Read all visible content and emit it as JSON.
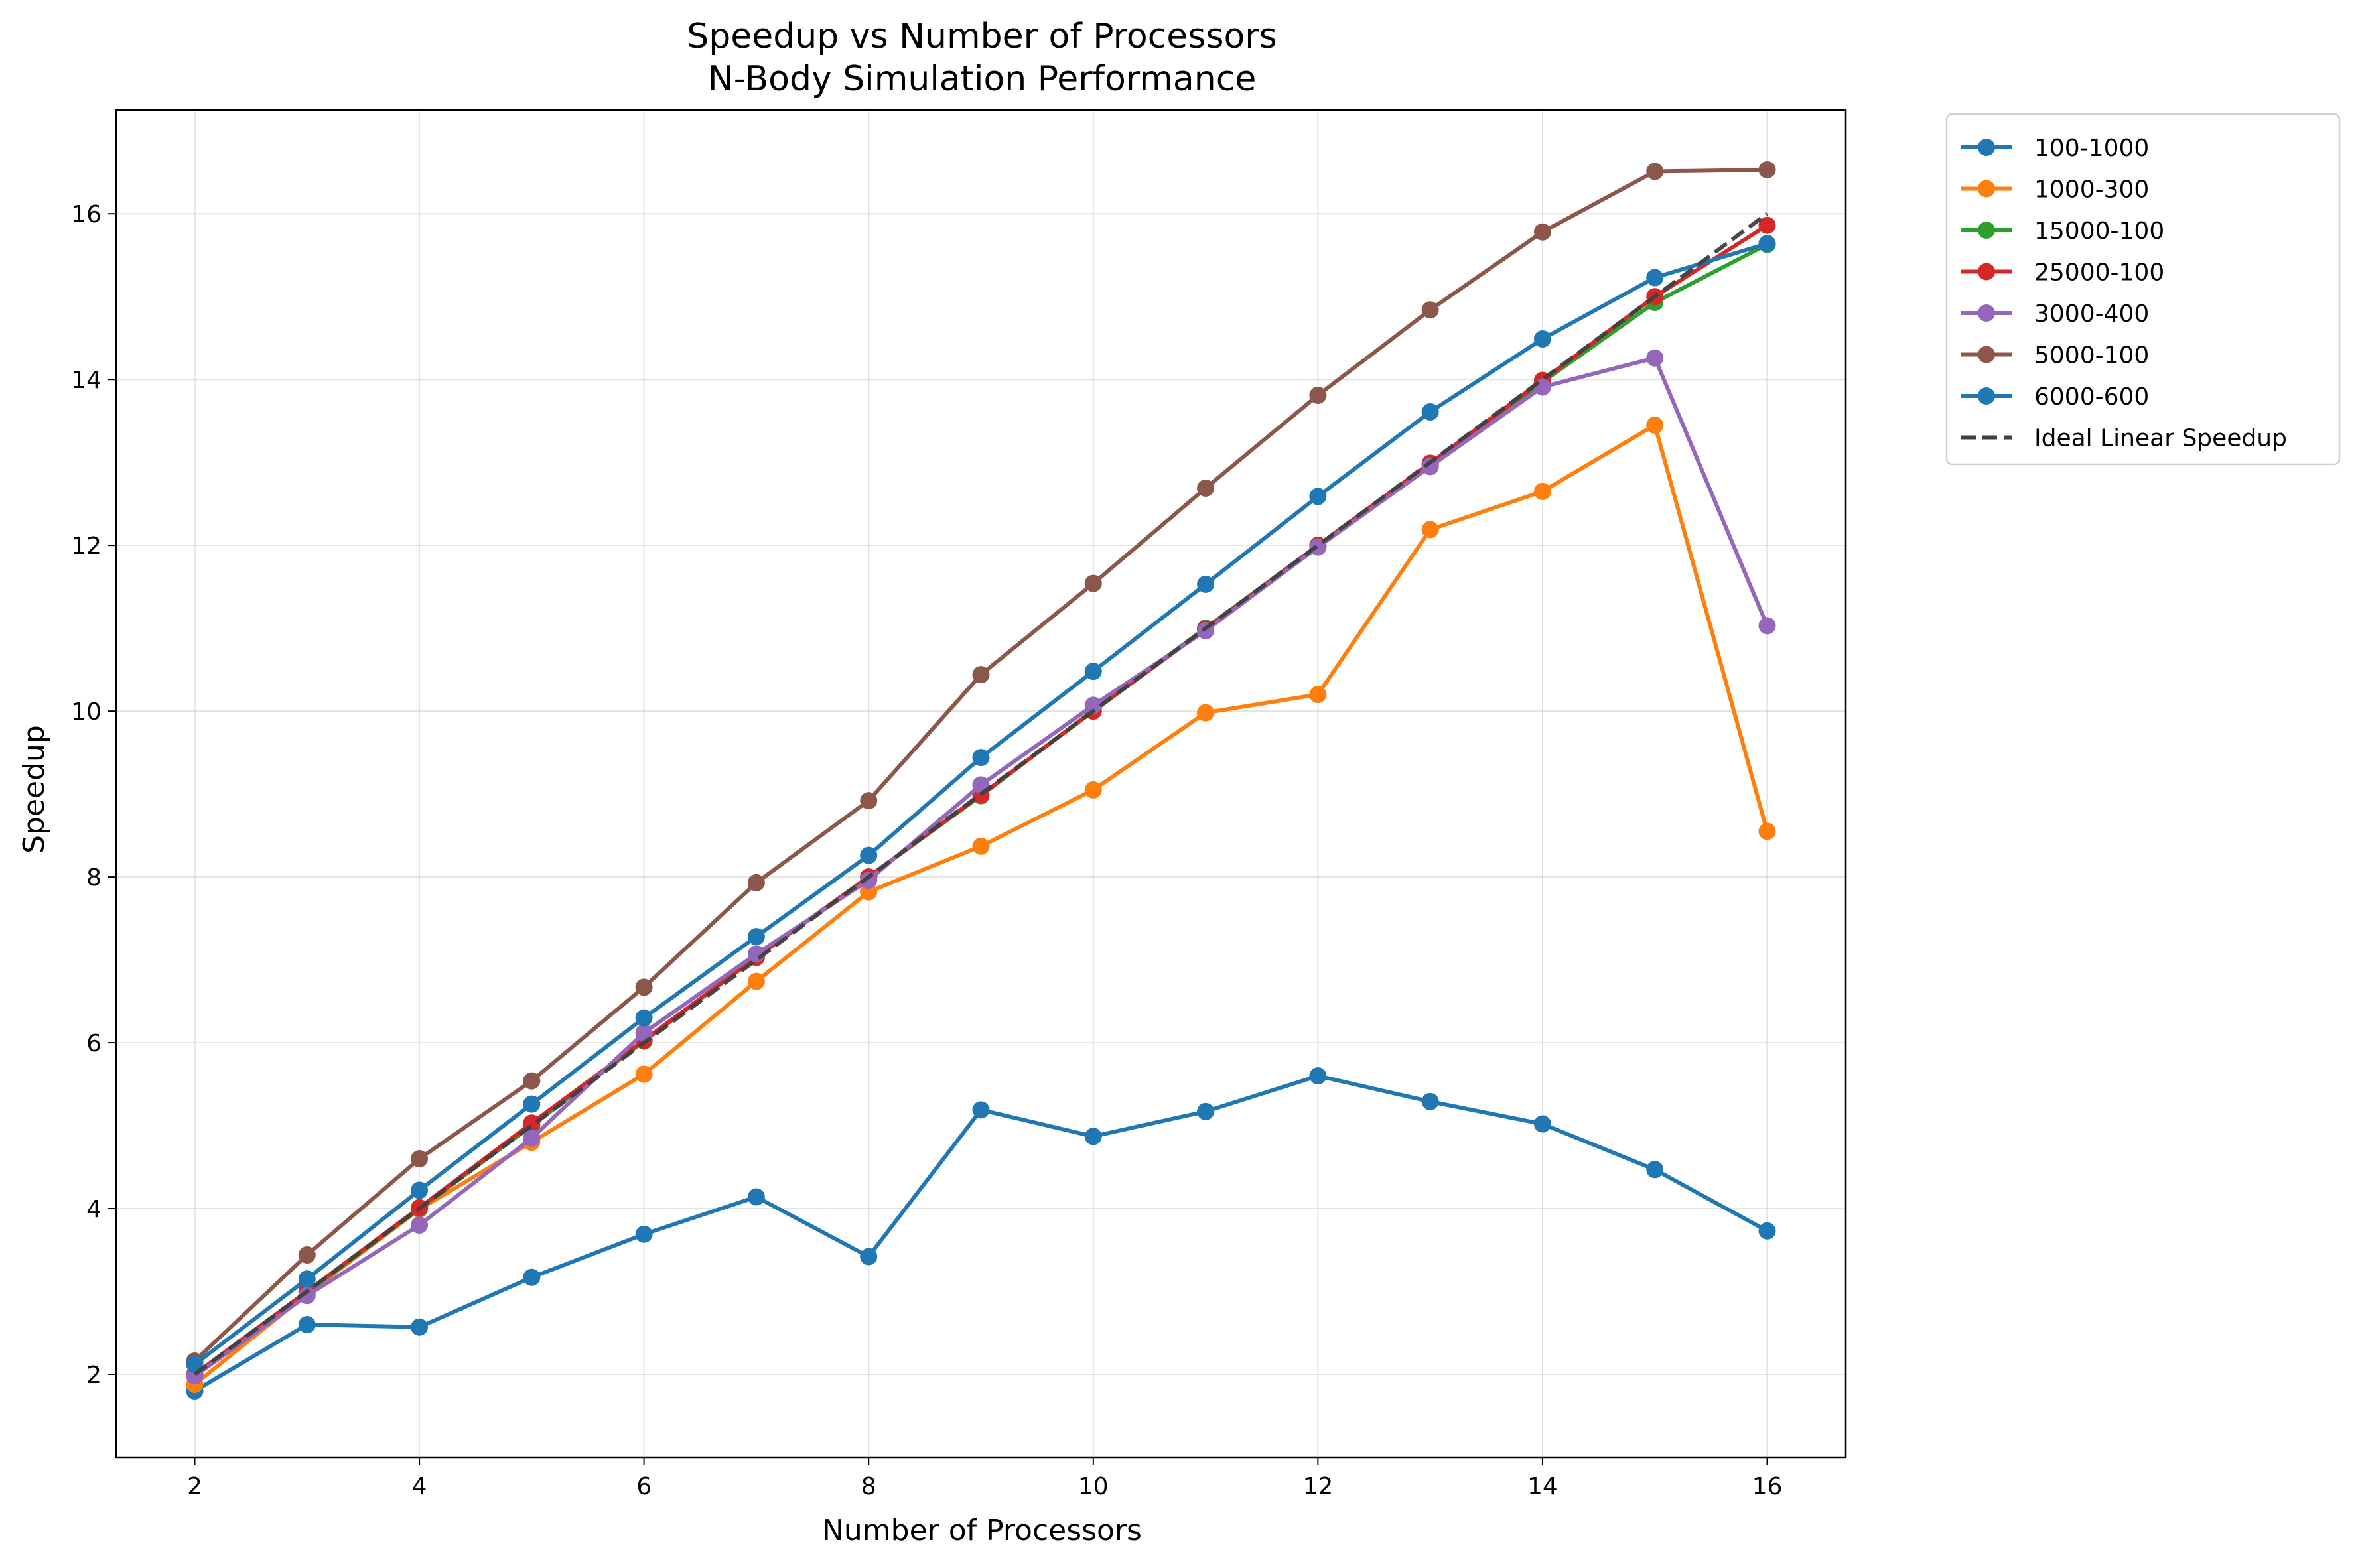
{
  "chart_data": {
    "type": "line",
    "title": "Speedup vs Number of Processors",
    "subtitle": "N-Body Simulation Performance",
    "xlabel": "Number of Processors",
    "ylabel": "Speedup",
    "xlim": [
      1.3,
      16.7
    ],
    "ylim": [
      1.0,
      17.25
    ],
    "xticks": [
      2,
      4,
      6,
      8,
      10,
      12,
      14,
      16
    ],
    "yticks": [
      2,
      4,
      6,
      8,
      10,
      12,
      14,
      16
    ],
    "grid": true,
    "legend_position": "outside-top-right",
    "x": [
      2,
      3,
      4,
      5,
      6,
      7,
      8,
      9,
      10,
      11,
      12,
      13,
      14,
      15,
      16
    ],
    "series": [
      {
        "name": "100-1000",
        "color": "#1f77b4",
        "style": "solid-marker",
        "values": [
          1.8,
          2.6,
          2.57,
          3.17,
          3.69,
          4.14,
          3.42,
          5.19,
          4.87,
          5.17,
          5.6,
          5.29,
          5.02,
          4.47,
          3.73
        ]
      },
      {
        "name": "1000-300",
        "color": "#ff7f0e",
        "style": "solid-marker",
        "values": [
          1.88,
          2.97,
          3.99,
          4.8,
          5.62,
          6.74,
          7.82,
          8.37,
          9.05,
          9.98,
          10.2,
          12.19,
          12.65,
          13.45,
          8.55
        ]
      },
      {
        "name": "15000-100",
        "color": "#2ca02c",
        "style": "solid-marker",
        "values": [
          2.0,
          2.99,
          4.0,
          5.0,
          6.02,
          7.03,
          8.0,
          8.98,
          10.01,
          11.0,
          12.0,
          12.97,
          13.97,
          14.93,
          15.63
        ]
      },
      {
        "name": "25000-100",
        "color": "#d62728",
        "style": "solid-marker",
        "values": [
          2.0,
          3.0,
          4.01,
          5.03,
          6.03,
          7.03,
          8.0,
          8.99,
          10.0,
          10.99,
          12.0,
          12.99,
          13.99,
          15.0,
          15.86
        ]
      },
      {
        "name": "3000-400",
        "color": "#9467bd",
        "style": "solid-marker",
        "values": [
          1.98,
          2.95,
          3.8,
          4.85,
          6.12,
          7.07,
          7.96,
          9.11,
          10.07,
          10.97,
          11.98,
          12.95,
          13.91,
          14.26,
          11.03
        ]
      },
      {
        "name": "5000-100",
        "color": "#8c564b",
        "style": "solid-marker",
        "values": [
          2.16,
          3.44,
          4.6,
          5.54,
          6.67,
          7.93,
          8.92,
          10.44,
          11.54,
          12.69,
          13.81,
          14.84,
          15.78,
          16.51,
          16.53
        ]
      },
      {
        "name": "6000-600",
        "color": "#1f77b4",
        "style": "solid-marker",
        "values": [
          2.12,
          3.15,
          4.22,
          5.26,
          6.3,
          7.28,
          8.26,
          9.44,
          10.48,
          11.53,
          12.59,
          13.61,
          14.49,
          15.23,
          15.64
        ]
      },
      {
        "name": "Ideal Linear Speedup",
        "color": "#3f3f3f",
        "style": "dashed",
        "values": [
          2,
          3,
          4,
          5,
          6,
          7,
          8,
          9,
          10,
          11,
          12,
          13,
          14,
          15,
          16
        ]
      }
    ]
  }
}
